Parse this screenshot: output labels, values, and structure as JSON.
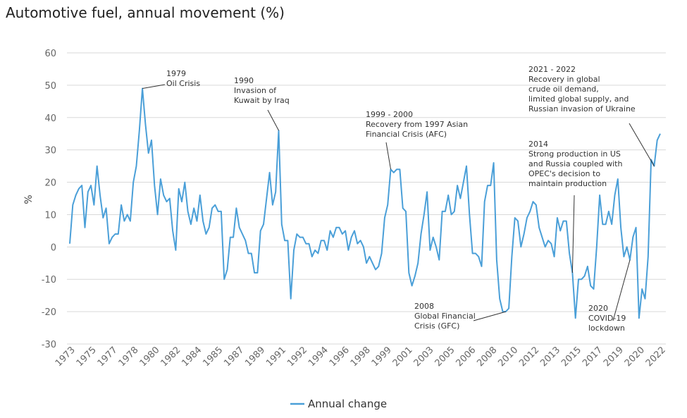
{
  "chart_data": {
    "type": "line",
    "title": "Automotive fuel, annual movement (%)",
    "ylabel": "%",
    "xlabel": "",
    "ylim": [
      -30,
      60
    ],
    "yticks": [
      60,
      50,
      40,
      30,
      20,
      10,
      0,
      -10,
      -20,
      -30
    ],
    "grid": true,
    "legend_position": "bottom",
    "xtick_labels": [
      "1973",
      "1975",
      "1977",
      "1978",
      "1980",
      "1982",
      "1984",
      "1985",
      "1987",
      "1989",
      "1991",
      "1992",
      "1994",
      "1996",
      "1998",
      "1999",
      "2001",
      "2003",
      "2005",
      "2006",
      "2008",
      "2010",
      "2012",
      "2013",
      "2015",
      "2017",
      "2019",
      "2020",
      "2022"
    ],
    "series": [
      {
        "name": "Annual change",
        "color": "#4a9fd8",
        "values": [
          1,
          13,
          16,
          18,
          19,
          6,
          17,
          19,
          13,
          25,
          16,
          9,
          12,
          1,
          3,
          4,
          4,
          13,
          8,
          10,
          8,
          20,
          25,
          36,
          49,
          38,
          29,
          33,
          19,
          10,
          21,
          16,
          14,
          15,
          5,
          -1,
          18,
          14,
          20,
          11,
          7,
          12,
          8,
          16,
          8,
          4,
          6,
          12,
          13,
          11,
          11,
          -10,
          -7,
          3,
          3,
          12,
          6,
          4,
          2,
          -2,
          -2,
          -8,
          -8,
          5,
          7,
          15,
          23,
          13,
          17,
          36,
          7,
          2,
          2,
          -16,
          -1,
          4,
          3,
          3,
          1,
          1,
          -3,
          -1,
          -2,
          2,
          2,
          -1,
          5,
          3,
          6,
          6,
          4,
          5,
          -1,
          3,
          5,
          1,
          2,
          0,
          -5,
          -3,
          -5,
          -7,
          -6,
          -2,
          9,
          13,
          24,
          23,
          24,
          24,
          12,
          11,
          -8,
          -12,
          -9,
          -5,
          4,
          10,
          17,
          -1,
          3,
          0,
          -4,
          11,
          11,
          16,
          10,
          11,
          19,
          15,
          20,
          25,
          10,
          -2,
          -2,
          -3,
          -6,
          14,
          19,
          19,
          26,
          -4,
          -16,
          -20,
          -20,
          -19,
          -3,
          9,
          8,
          0,
          4,
          9,
          11,
          14,
          13,
          6,
          3,
          0,
          2,
          1,
          -3,
          9,
          5,
          8,
          8,
          -2,
          -8,
          -22,
          -10,
          -10,
          -9,
          -6,
          -12,
          -13,
          0,
          16,
          7,
          7,
          11,
          7,
          16,
          21,
          6,
          -3,
          0,
          -4,
          3,
          6,
          -22,
          -13,
          -16,
          -3,
          27,
          25,
          33,
          35
        ]
      }
    ],
    "annotations": [
      {
        "lines": [
          "1979",
          "Oil Crisis"
        ],
        "x_index": 24
      },
      {
        "lines": [
          "1990",
          "Invasion of",
          "Kuwait by Iraq"
        ],
        "x_index": 69
      },
      {
        "lines": [
          "1999 - 2000",
          "Recovery from 1997 Asian",
          "Financial Crisis (AFC)"
        ],
        "x_index": 106
      },
      {
        "lines": [
          "2008",
          "Global Financial",
          "Crisis (GFC)"
        ],
        "x_index": 144
      },
      {
        "lines": [
          "2014",
          "Strong production in US",
          "and Russia coupled with",
          "OPEC's decision to",
          "maintain production"
        ],
        "x_index": 166
      },
      {
        "lines": [
          "2020",
          "COVID-19",
          "lockdown"
        ],
        "x_index": 185
      },
      {
        "lines": [
          "2021 - 2022",
          "Recovery in global",
          "crude oil demand,",
          "limited global supply, and",
          "Russian invasion of Ukraine"
        ],
        "x_index": 193
      }
    ]
  }
}
